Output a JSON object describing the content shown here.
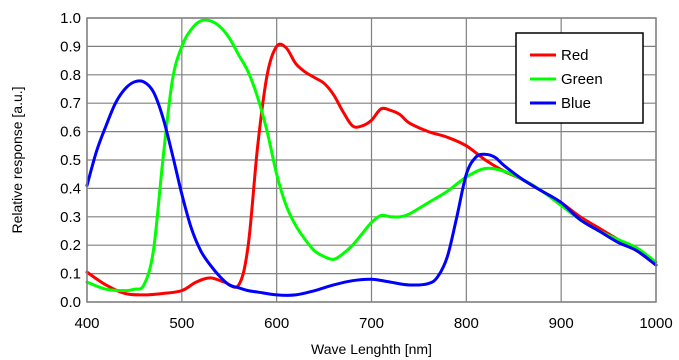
{
  "chart_data": {
    "type": "line",
    "xlabel": "Wave Lenghth [nm]",
    "ylabel": "Relative response [a.u.]",
    "xlim": [
      400,
      1000
    ],
    "ylim": [
      0.0,
      1.0
    ],
    "xticks": [
      400,
      500,
      600,
      700,
      800,
      900,
      1000
    ],
    "yticks": [
      0.0,
      0.1,
      0.2,
      0.3,
      0.4,
      0.5,
      0.6,
      0.7,
      0.8,
      0.9,
      1.0
    ],
    "xtick_labels": [
      "400",
      "500",
      "600",
      "700",
      "800",
      "900",
      "1000"
    ],
    "ytick_labels": [
      "0.0",
      "0.1",
      "0.2",
      "0.3",
      "0.4",
      "0.5",
      "0.6",
      "0.7",
      "0.8",
      "0.9",
      "1.0"
    ],
    "grid": true,
    "legend_position": "top-right",
    "series": [
      {
        "name": "Red",
        "color": "#ff0000",
        "x": [
          400,
          420,
          440,
          460,
          480,
          500,
          515,
          530,
          545,
          560,
          570,
          580,
          590,
          600,
          610,
          620,
          630,
          640,
          650,
          660,
          670,
          680,
          690,
          700,
          710,
          720,
          730,
          740,
          760,
          780,
          800,
          820,
          840,
          860,
          880,
          900,
          920,
          940,
          960,
          980,
          1000
        ],
        "y": [
          0.105,
          0.06,
          0.03,
          0.025,
          0.03,
          0.04,
          0.07,
          0.085,
          0.07,
          0.06,
          0.2,
          0.55,
          0.8,
          0.9,
          0.895,
          0.84,
          0.81,
          0.79,
          0.77,
          0.73,
          0.67,
          0.62,
          0.62,
          0.64,
          0.68,
          0.675,
          0.66,
          0.63,
          0.6,
          0.58,
          0.55,
          0.5,
          0.46,
          0.43,
          0.39,
          0.35,
          0.3,
          0.26,
          0.22,
          0.18,
          0.13
        ]
      },
      {
        "name": "Green",
        "color": "#00ff00",
        "x": [
          400,
          420,
          440,
          450,
          460,
          470,
          480,
          490,
          500,
          510,
          520,
          530,
          540,
          550,
          560,
          570,
          580,
          590,
          600,
          610,
          620,
          630,
          640,
          650,
          660,
          670,
          680,
          690,
          700,
          710,
          720,
          730,
          740,
          760,
          780,
          800,
          820,
          840,
          860,
          880,
          900,
          920,
          940,
          960,
          980,
          1000
        ],
        "y": [
          0.07,
          0.045,
          0.04,
          0.045,
          0.06,
          0.18,
          0.5,
          0.78,
          0.9,
          0.96,
          0.99,
          0.99,
          0.97,
          0.93,
          0.87,
          0.81,
          0.72,
          0.6,
          0.45,
          0.34,
          0.27,
          0.22,
          0.18,
          0.16,
          0.15,
          0.17,
          0.2,
          0.24,
          0.28,
          0.305,
          0.3,
          0.3,
          0.31,
          0.35,
          0.39,
          0.44,
          0.47,
          0.46,
          0.43,
          0.39,
          0.34,
          0.29,
          0.25,
          0.22,
          0.19,
          0.14
        ]
      },
      {
        "name": "Blue",
        "color": "#0000ff",
        "x": [
          400,
          410,
          420,
          430,
          440,
          450,
          460,
          470,
          480,
          490,
          500,
          510,
          520,
          530,
          540,
          550,
          560,
          570,
          580,
          600,
          620,
          640,
          660,
          680,
          700,
          720,
          740,
          760,
          770,
          780,
          790,
          800,
          810,
          820,
          830,
          840,
          860,
          880,
          900,
          920,
          940,
          960,
          980,
          1000
        ],
        "y": [
          0.41,
          0.53,
          0.62,
          0.7,
          0.75,
          0.775,
          0.775,
          0.74,
          0.65,
          0.52,
          0.38,
          0.26,
          0.18,
          0.13,
          0.09,
          0.06,
          0.05,
          0.04,
          0.035,
          0.025,
          0.025,
          0.04,
          0.06,
          0.075,
          0.08,
          0.07,
          0.06,
          0.065,
          0.09,
          0.16,
          0.3,
          0.45,
          0.51,
          0.52,
          0.51,
          0.48,
          0.43,
          0.39,
          0.35,
          0.29,
          0.25,
          0.21,
          0.18,
          0.13
        ]
      }
    ]
  }
}
